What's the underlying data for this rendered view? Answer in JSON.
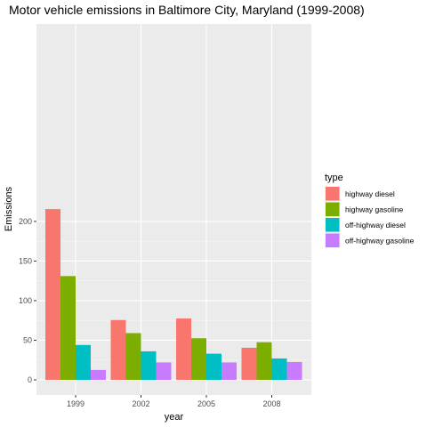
{
  "chart_data": {
    "type": "bar",
    "title": "Motor vehicle emissions in Baltimore City, Maryland (1999-2008)",
    "xlabel": "year",
    "ylabel": "Emissions",
    "categories": [
      "1999",
      "2002",
      "2005",
      "2008"
    ],
    "ylim": [
      0,
      230
    ],
    "yticks": [
      0,
      50,
      100,
      150,
      200
    ],
    "grid": true,
    "legend": {
      "title": "type",
      "placement": "right"
    },
    "series": [
      {
        "name": "highway diesel",
        "color": "#F8766D",
        "values": [
          215.5,
          75.5,
          77.5,
          40.5
        ]
      },
      {
        "name": "highway gasoline",
        "color": "#7CAE00",
        "values": [
          131.0,
          59.0,
          52.5,
          47.5
        ]
      },
      {
        "name": "off-highway diesel",
        "color": "#00BFC4",
        "values": [
          44.0,
          36.0,
          33.0,
          27.0
        ]
      },
      {
        "name": "off-highway gasoline",
        "color": "#C77CFF",
        "values": [
          12.5,
          22.0,
          22.0,
          22.5
        ]
      }
    ]
  }
}
